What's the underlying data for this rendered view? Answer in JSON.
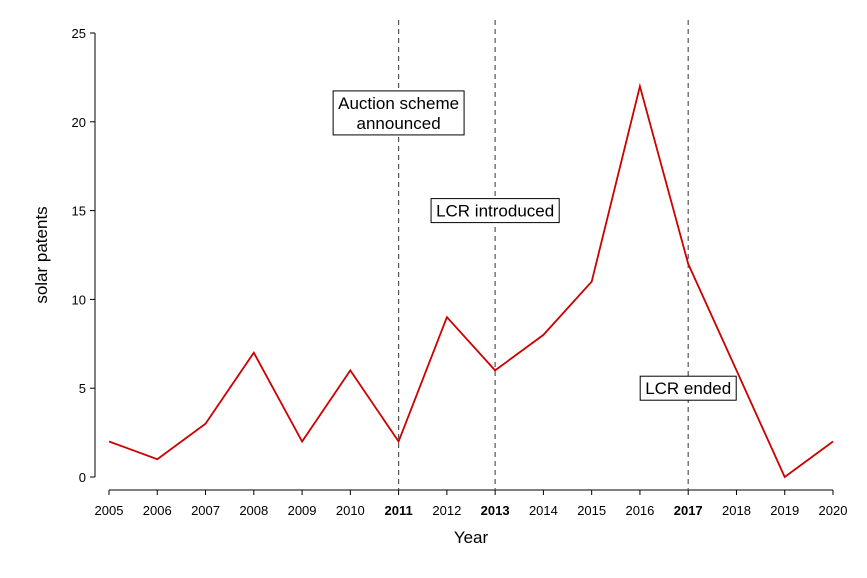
{
  "chart_data": {
    "type": "line",
    "title": "",
    "xlabel": "Year",
    "ylabel": "solar patents",
    "x": [
      2005,
      2006,
      2007,
      2008,
      2009,
      2010,
      2011,
      2012,
      2013,
      2014,
      2015,
      2016,
      2017,
      2018,
      2019,
      2020
    ],
    "series": [
      {
        "values": [
          2,
          1,
          3,
          7,
          2,
          6,
          2,
          9,
          6,
          8,
          11,
          22,
          12,
          6,
          0,
          2
        ],
        "color": "#cc0000"
      }
    ],
    "xlim": [
      2005,
      2020
    ],
    "ylim": [
      0,
      25
    ],
    "yticks": [
      0,
      5,
      10,
      15,
      20,
      25
    ],
    "bold_xticks": [
      2011,
      2013,
      2017
    ],
    "grid": false,
    "legend": "none",
    "reference_lines": [
      {
        "x": 2011,
        "style": "dashed"
      },
      {
        "x": 2013,
        "style": "dashed"
      },
      {
        "x": 2017,
        "style": "dashed"
      }
    ],
    "annotations": [
      {
        "lines": [
          "Auction scheme",
          "announced"
        ],
        "x": 2011,
        "y": 20.5
      },
      {
        "lines": [
          "LCR introduced"
        ],
        "x": 2013,
        "y": 15
      },
      {
        "lines": [
          "LCR ended"
        ],
        "x": 2017,
        "y": 5
      }
    ]
  }
}
